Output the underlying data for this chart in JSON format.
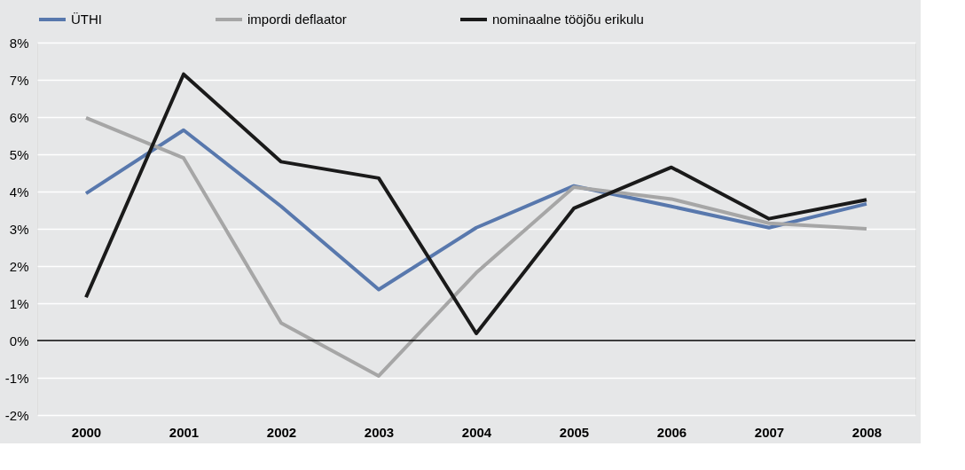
{
  "chart_data": {
    "type": "line",
    "categories": [
      "2000",
      "2001",
      "2002",
      "2003",
      "2004",
      "2005",
      "2006",
      "2007",
      "2008"
    ],
    "series": [
      {
        "name": "ÜTHI",
        "color": "#5878ad",
        "values": [
          3.95,
          5.65,
          3.6,
          1.37,
          3.03,
          4.15,
          3.6,
          3.03,
          3.67
        ]
      },
      {
        "name": "impordi deflaator",
        "color": "#a6a6a6",
        "values": [
          5.98,
          4.9,
          0.47,
          -0.95,
          1.82,
          4.12,
          3.8,
          3.15,
          3.0
        ]
      },
      {
        "name": "nominaalne tööjõu erikulu",
        "color": "#1a1a1a",
        "values": [
          1.16,
          7.15,
          4.8,
          4.36,
          0.19,
          3.55,
          4.65,
          3.27,
          3.78
        ]
      }
    ],
    "ylim": [
      -2,
      8
    ],
    "yticks": [
      {
        "value": -2,
        "label": "-2%"
      },
      {
        "value": -1,
        "label": "-1%"
      },
      {
        "value": 0,
        "label": "0%"
      },
      {
        "value": 1,
        "label": "1%"
      },
      {
        "value": 2,
        "label": "2%"
      },
      {
        "value": 3,
        "label": "3%"
      },
      {
        "value": 4,
        "label": "4%"
      },
      {
        "value": 5,
        "label": "5%"
      },
      {
        "value": 6,
        "label": "6%"
      },
      {
        "value": 7,
        "label": "7%"
      },
      {
        "value": 8,
        "label": "8%"
      }
    ],
    "ref_lines": [
      {
        "axis": "y",
        "value": 0,
        "color": "#000000"
      }
    ],
    "grid": "y",
    "legend": "top",
    "marker": "none",
    "line_style": "solid"
  }
}
